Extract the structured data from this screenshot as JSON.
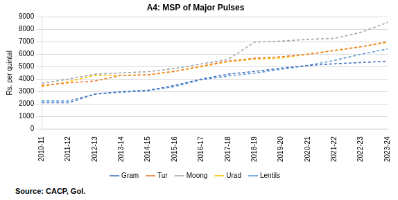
{
  "chart_data": {
    "type": "line",
    "title": "A4: MSP of Major Pulses",
    "y_label": "Rs. per quintal",
    "source": "Source: CACP, GoI.",
    "categories": [
      "2010-11",
      "2011-12",
      "2012-13",
      "2013-14",
      "2014-15",
      "2015-16",
      "2016-17",
      "2017-18",
      "2018-19",
      "2019-20",
      "2020-21",
      "2021-22",
      "2022-23",
      "2023-24"
    ],
    "series": [
      {
        "name": "Gram",
        "color": "#4472c4",
        "values": [
          2100,
          2100,
          2800,
          3000,
          3100,
          3500,
          4000,
          4400,
          4620,
          4875,
          5100,
          5230,
          5335,
          5440
        ]
      },
      {
        "name": "Tur",
        "color": "#ed7d31",
        "values": [
          3500,
          3700,
          3850,
          4300,
          4350,
          4625,
          5050,
          5450,
          5675,
          5800,
          6000,
          6300,
          6600,
          7000
        ]
      },
      {
        "name": "Moong",
        "color": "#a5a5a5",
        "values": [
          3670,
          4000,
          4400,
          4500,
          4600,
          4850,
          5225,
          5575,
          6975,
          7050,
          7196,
          7275,
          7755,
          8558
        ]
      },
      {
        "name": "Urad",
        "color": "#ffc000",
        "values": [
          3400,
          3800,
          4300,
          4300,
          4350,
          4625,
          5000,
          5400,
          5600,
          5700,
          6000,
          6300,
          6600,
          6950
        ]
      },
      {
        "name": "Lentils",
        "color": "#5b9bd5",
        "values": [
          2250,
          2250,
          2800,
          2950,
          3075,
          3400,
          3950,
          4250,
          4475,
          4800,
          5100,
          5500,
          6000,
          6425
        ]
      }
    ],
    "ylim": [
      0,
      9000
    ],
    "yticks": [
      0,
      1000,
      2000,
      3000,
      4000,
      5000,
      6000,
      7000,
      8000,
      9000
    ],
    "grid": true,
    "legend": "bottom",
    "line_style": "dashed",
    "marker": "none"
  }
}
